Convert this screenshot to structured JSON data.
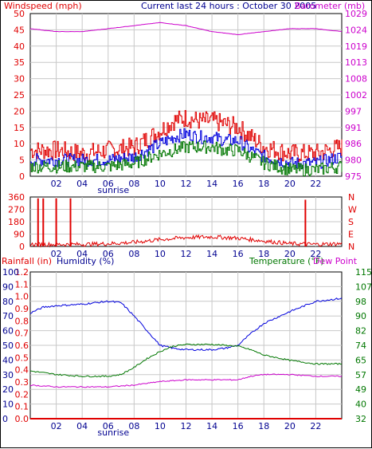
{
  "header": {
    "left_label": "Windspeed (mph)",
    "center_label": "Current last 24 hours : October 30 2005",
    "right_label": "Barometer (mb)"
  },
  "colors": {
    "red": "#e00000",
    "blue": "#0000dd",
    "green": "#007700",
    "magenta": "#cc00cc",
    "navy": "#000090",
    "grid": "#c8c8c8"
  },
  "chart_data": [
    {
      "type": "line",
      "x_ticks": [
        "02",
        "04",
        "06",
        "08",
        "10",
        "12",
        "14",
        "16",
        "18",
        "20",
        "22"
      ],
      "x_extra_label": "sunrise",
      "y_left_label": "Windspeed (mph)",
      "y_left_ticks": [
        "50",
        "45",
        "40",
        "35",
        "30",
        "25",
        "20",
        "15",
        "10",
        "5",
        "0"
      ],
      "y_left_range": [
        0,
        50
      ],
      "y_right_label": "Barometer (mb)",
      "y_right_ticks": [
        "1029",
        "1024",
        "1019",
        "1013",
        "1008",
        "1002",
        "997",
        "991",
        "986",
        "980",
        "975"
      ],
      "y_right_range": [
        975,
        1029
      ],
      "grid": true,
      "series": [
        {
          "key": "gust",
          "color": "#e00000",
          "x": [
            0,
            2,
            4,
            6,
            8,
            10,
            11,
            12,
            13,
            14,
            15,
            16,
            17,
            18,
            20,
            22,
            24
          ],
          "values": [
            8,
            8,
            7,
            8,
            9,
            14,
            17,
            18,
            17,
            17,
            16,
            15,
            12,
            9,
            7,
            7,
            9
          ]
        },
        {
          "key": "average",
          "color": "#0000dd",
          "x": [
            0,
            2,
            4,
            6,
            8,
            10,
            11,
            12,
            13,
            14,
            15,
            16,
            17,
            18,
            20,
            22,
            24
          ],
          "values": [
            5,
            5,
            5,
            5,
            6,
            10,
            12,
            13,
            12,
            12,
            11,
            11,
            8,
            6,
            4,
            4,
            6
          ]
        },
        {
          "key": "minimum",
          "color": "#007700",
          "x": [
            0,
            2,
            4,
            6,
            8,
            10,
            11,
            12,
            13,
            14,
            15,
            16,
            17,
            18,
            20,
            22,
            24
          ],
          "values": [
            3,
            3,
            3,
            3,
            4,
            7,
            8,
            9,
            9,
            9,
            8,
            8,
            6,
            4,
            2,
            2,
            3
          ]
        },
        {
          "key": "barometer",
          "color": "#cc00cc",
          "axis": "right",
          "x": [
            0,
            2,
            4,
            6,
            8,
            10,
            12,
            14,
            16,
            18,
            20,
            22,
            24
          ],
          "values": [
            1024,
            1023,
            1023,
            1024,
            1025,
            1026,
            1025,
            1023,
            1022,
            1023,
            1024,
            1024,
            1023
          ]
        }
      ]
    },
    {
      "type": "line",
      "x_ticks": [
        "02",
        "04",
        "06",
        "08",
        "10",
        "12",
        "14",
        "16",
        "18",
        "20",
        "22"
      ],
      "y_left_ticks": [
        "360",
        "270",
        "180",
        "90",
        "0"
      ],
      "y_left_range": [
        0,
        360
      ],
      "y_right_ticks": [
        "N",
        "W",
        "S",
        "E",
        "N"
      ],
      "y_right_label": "NWSEN",
      "grid": true,
      "series": [
        {
          "key": "direction",
          "color": "#e00000",
          "x": [
            0,
            2,
            4,
            6,
            8,
            10,
            12,
            14,
            16,
            18,
            20,
            22,
            24
          ],
          "values": [
            15,
            15,
            15,
            20,
            30,
            50,
            65,
            70,
            60,
            40,
            20,
            15,
            20
          ]
        },
        {
          "key": "direction_spikes",
          "color": "#e00000",
          "x": [
            0.6,
            1.0,
            2.0,
            3.1,
            21.2
          ],
          "values": [
            350,
            350,
            350,
            350,
            340
          ]
        }
      ]
    },
    {
      "type": "line",
      "x_ticks": [
        "02",
        "04",
        "06",
        "08",
        "10",
        "12",
        "14",
        "16",
        "18",
        "20",
        "22"
      ],
      "x_extra_label": "sunrise",
      "y_rain_label": "Rainfall (in)",
      "y_rain_ticks": [
        "1.2",
        "1.1",
        "1.0",
        "0.9",
        "0.8",
        "0.7",
        "0.6",
        "0.5",
        "0.4",
        "0.3",
        "0.2",
        "0.1",
        "0.0"
      ],
      "y_rain_range": [
        0,
        1.2
      ],
      "y_humidity_label": "Humidity (%)",
      "y_humidity_ticks": [
        "100",
        "90",
        "80",
        "70",
        "60",
        "50",
        "40",
        "30",
        "20",
        "10",
        "0"
      ],
      "y_humidity_range": [
        0,
        100
      ],
      "y_temp_label": "Temperature (°F)",
      "y_dew_label": "Dew Point",
      "y_temp_ticks": [
        "115",
        "107",
        "98",
        "90",
        "82",
        "74",
        "65",
        "57",
        "49",
        "40",
        "32"
      ],
      "y_temp_range": [
        32,
        115
      ],
      "grid": true,
      "series": [
        {
          "key": "humidity",
          "color": "#0000dd",
          "axis": "humidity",
          "x": [
            0,
            1,
            2,
            4,
            6,
            7,
            8,
            9,
            10,
            11,
            12,
            14,
            15,
            16,
            17,
            18,
            20,
            22,
            24
          ],
          "values": [
            72,
            76,
            77,
            78,
            80,
            79,
            70,
            60,
            50,
            48,
            47,
            47,
            48,
            50,
            58,
            65,
            73,
            80,
            82
          ]
        },
        {
          "key": "temperature",
          "color": "#007700",
          "axis": "temp",
          "x": [
            0,
            2,
            4,
            6,
            7,
            8,
            9,
            10,
            11,
            12,
            14,
            16,
            17,
            18,
            20,
            22,
            24
          ],
          "values": [
            59,
            57,
            56,
            56,
            57,
            61,
            66,
            70,
            73,
            74,
            74,
            73,
            71,
            68,
            65,
            63,
            63
          ]
        },
        {
          "key": "dew_point",
          "color": "#cc00cc",
          "axis": "temp",
          "x": [
            0,
            2,
            4,
            6,
            8,
            10,
            12,
            14,
            16,
            17,
            18,
            20,
            22,
            24
          ],
          "values": [
            51,
            50,
            50,
            50,
            51,
            53,
            54,
            54,
            54,
            56,
            57,
            57,
            56,
            56
          ]
        },
        {
          "key": "rainfall",
          "color": "#e00000",
          "axis": "rain",
          "x": [
            0,
            24
          ],
          "values": [
            0.0,
            0.0
          ]
        }
      ]
    }
  ]
}
